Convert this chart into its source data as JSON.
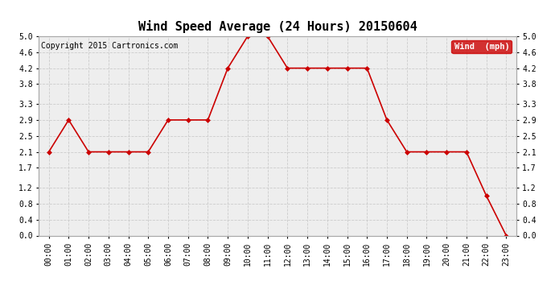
{
  "title": "Wind Speed Average (24 Hours) 20150604",
  "copyright": "Copyright 2015 Cartronics.com",
  "legend_label": "Wind  (mph)",
  "x_labels": [
    "00:00",
    "01:00",
    "02:00",
    "03:00",
    "04:00",
    "05:00",
    "06:00",
    "07:00",
    "08:00",
    "09:00",
    "10:00",
    "11:00",
    "12:00",
    "13:00",
    "14:00",
    "15:00",
    "16:00",
    "17:00",
    "18:00",
    "19:00",
    "20:00",
    "21:00",
    "22:00",
    "23:00"
  ],
  "y_values": [
    2.1,
    2.9,
    2.1,
    2.1,
    2.1,
    2.1,
    2.9,
    2.9,
    2.9,
    4.2,
    5.0,
    5.0,
    4.2,
    4.2,
    4.2,
    4.2,
    4.2,
    2.9,
    2.1,
    2.1,
    2.1,
    2.1,
    1.0,
    0.0
  ],
  "ylim": [
    0.0,
    5.0
  ],
  "yticks": [
    0.0,
    0.4,
    0.8,
    1.2,
    1.7,
    2.1,
    2.5,
    2.9,
    3.3,
    3.8,
    4.2,
    4.6,
    5.0
  ],
  "line_color": "#cc0000",
  "marker": "D",
  "marker_size": 3,
  "background_color": "#ffffff",
  "plot_bg_color": "#eeeeee",
  "grid_color": "#cccccc",
  "title_fontsize": 11,
  "tick_fontsize": 7,
  "copyright_fontsize": 7,
  "legend_bg": "#cc0000",
  "legend_text_color": "#ffffff"
}
